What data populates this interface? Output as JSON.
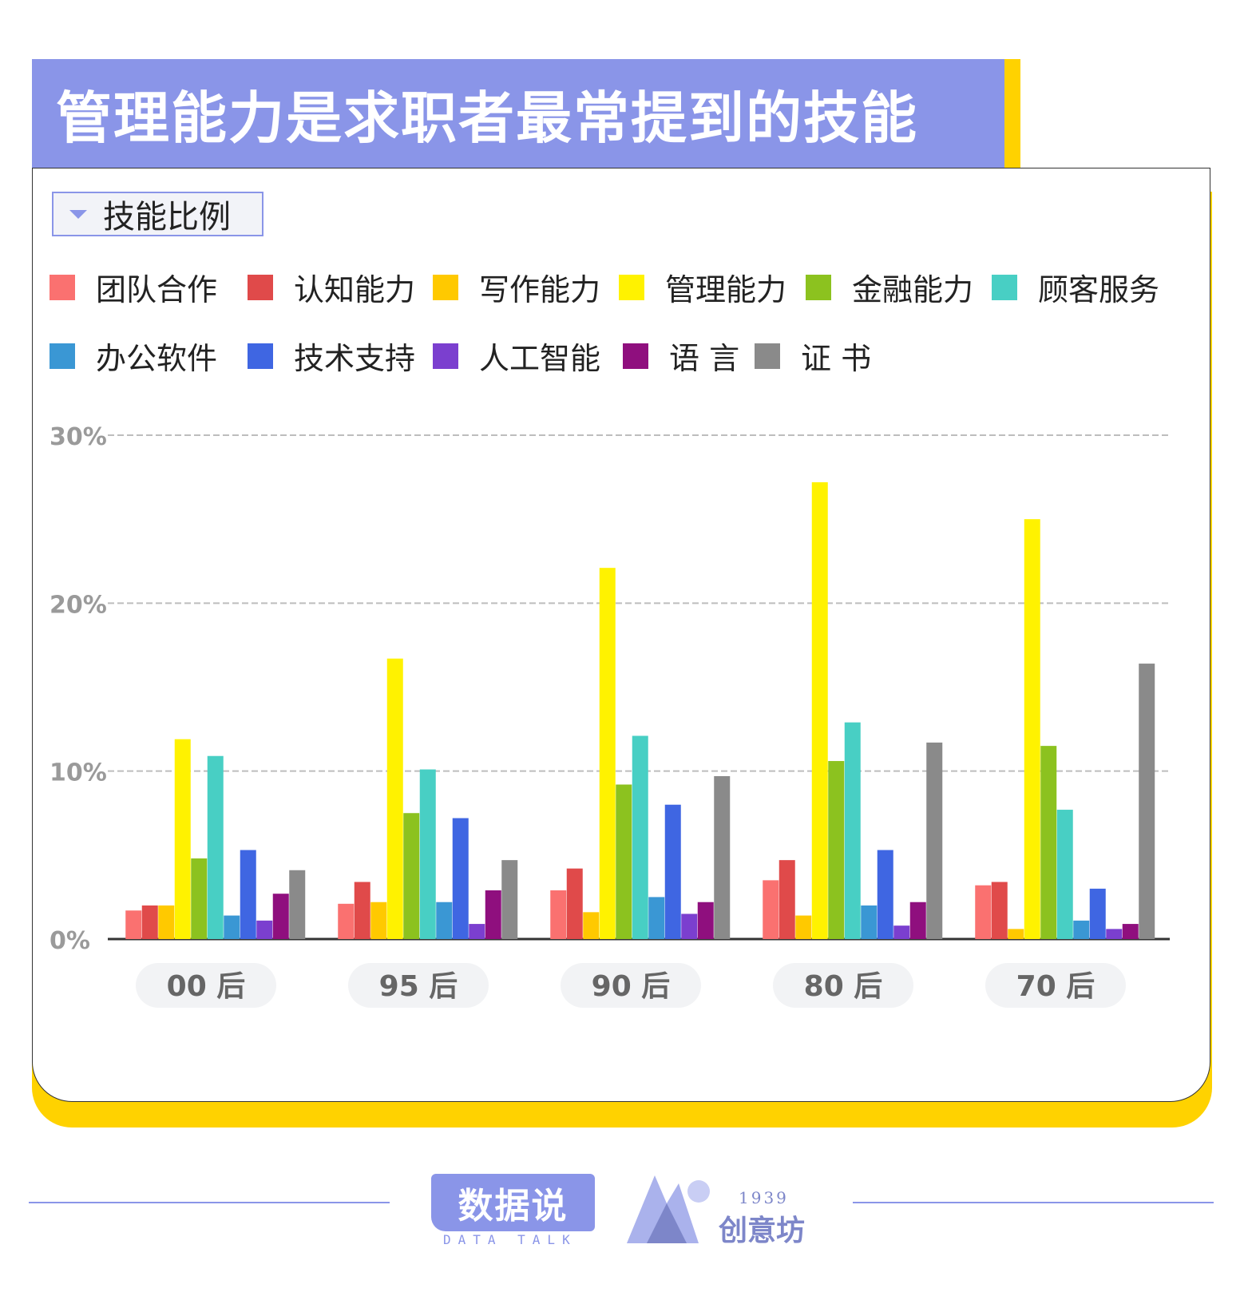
{
  "title": "管理能力是求职者最常提到的技能",
  "dropdown_label": "技能比例",
  "footer": {
    "logo1_text": "数据说",
    "logo1_sub": "DATA TALK",
    "logo2_year": "1939",
    "logo2_text": "创意坊"
  },
  "colors": {
    "title_bg": "#8a95e8",
    "accent": "#ffd200"
  },
  "chart_data": {
    "type": "bar",
    "categories": [
      "00 后",
      "95 后",
      "90 后",
      "80 后",
      "70 后"
    ],
    "ylim": [
      0,
      30
    ],
    "yticks": [
      "0%",
      "10%",
      "20%",
      "30%"
    ],
    "ytick_values": [
      0,
      10,
      20,
      30
    ],
    "grid": true,
    "legend_position": "top",
    "series": [
      {
        "name": "团队合作",
        "color": "#fa7170",
        "values": [
          1.7,
          2.1,
          2.9,
          3.5,
          3.2
        ]
      },
      {
        "name": "认知能力",
        "color": "#e04a4a",
        "values": [
          2.0,
          3.4,
          4.2,
          4.7,
          3.4
        ]
      },
      {
        "name": "写作能力",
        "color": "#ffc900",
        "values": [
          2.0,
          2.2,
          1.6,
          1.4,
          0.6
        ]
      },
      {
        "name": "管理能力",
        "color": "#fff200",
        "values": [
          11.9,
          16.7,
          22.1,
          27.2,
          25.0
        ]
      },
      {
        "name": "金融能力",
        "color": "#8cc21f",
        "values": [
          4.8,
          7.5,
          9.2,
          10.6,
          11.5
        ]
      },
      {
        "name": "顾客服务",
        "color": "#48cfc4",
        "values": [
          10.9,
          10.1,
          12.1,
          12.9,
          7.7
        ]
      },
      {
        "name": "办公软件",
        "color": "#3a97d4",
        "values": [
          1.4,
          2.2,
          2.5,
          2.0,
          1.1
        ]
      },
      {
        "name": "技术支持",
        "color": "#3f66e2",
        "values": [
          5.3,
          7.2,
          8.0,
          5.3,
          3.0
        ]
      },
      {
        "name": "人工智能",
        "color": "#7b3fcf",
        "values": [
          1.1,
          0.9,
          1.5,
          0.8,
          0.6
        ]
      },
      {
        "name": "语 言",
        "color": "#8f0f7e",
        "values": [
          2.7,
          2.9,
          2.2,
          2.2,
          0.9
        ]
      },
      {
        "name": "证 书",
        "color": "#8a8a8a",
        "values": [
          4.1,
          4.7,
          9.7,
          11.7,
          16.4
        ]
      }
    ]
  }
}
